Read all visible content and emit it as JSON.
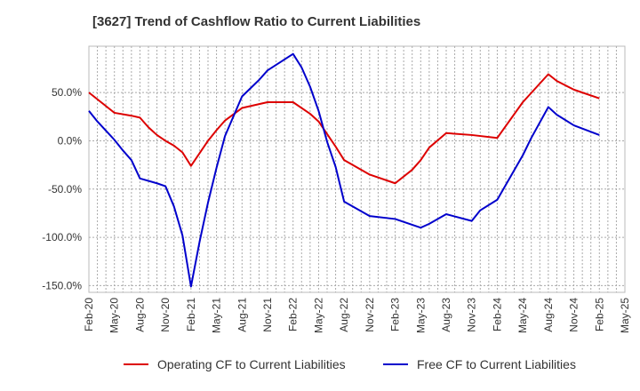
{
  "chart_data": {
    "type": "line",
    "title": "[3627]  Trend of Cashflow Ratio to Current Liabilities",
    "xlabel": "",
    "ylabel": "",
    "x_ticks": [
      "Feb-20",
      "May-20",
      "Aug-20",
      "Nov-20",
      "Feb-21",
      "May-21",
      "Aug-21",
      "Nov-21",
      "Feb-22",
      "May-22",
      "Aug-22",
      "Nov-22",
      "Feb-23",
      "May-23",
      "Aug-23",
      "Nov-23",
      "Feb-24",
      "May-24",
      "Aug-24",
      "Nov-24",
      "Feb-25",
      "May-25"
    ],
    "y_ticks": [
      "50.0%",
      "0.0%",
      "-50.0%",
      "-100.0%",
      "-150.0%"
    ],
    "y_tick_values": [
      50,
      0,
      -50,
      -100,
      -150
    ],
    "ylim": [
      -157,
      98
    ],
    "x_range_months": [
      0,
      63
    ],
    "grid": true,
    "legend_position": "bottom",
    "series": [
      {
        "name": "Operating CF to Current Liabilities",
        "color": "#dd0000",
        "points": [
          {
            "x": "2020-02",
            "y": 50
          },
          {
            "x": "2020-05",
            "y": 29
          },
          {
            "x": "2020-07",
            "y": 26
          },
          {
            "x": "2020-08",
            "y": 24
          },
          {
            "x": "2020-09",
            "y": 14
          },
          {
            "x": "2020-10",
            "y": 6
          },
          {
            "x": "2020-11",
            "y": 0
          },
          {
            "x": "2020-12",
            "y": -5
          },
          {
            "x": "2021-01",
            "y": -12
          },
          {
            "x": "2021-02",
            "y": -26
          },
          {
            "x": "2021-04",
            "y": 0
          },
          {
            "x": "2021-05",
            "y": 11
          },
          {
            "x": "2021-06",
            "y": 21
          },
          {
            "x": "2021-08",
            "y": 34
          },
          {
            "x": "2021-11",
            "y": 40
          },
          {
            "x": "2022-02",
            "y": 40
          },
          {
            "x": "2022-04",
            "y": 28
          },
          {
            "x": "2022-05",
            "y": 20
          },
          {
            "x": "2022-06",
            "y": 7
          },
          {
            "x": "2022-07",
            "y": -6
          },
          {
            "x": "2022-08",
            "y": -20
          },
          {
            "x": "2022-11",
            "y": -35
          },
          {
            "x": "2023-02",
            "y": -44
          },
          {
            "x": "2023-04",
            "y": -30
          },
          {
            "x": "2023-05",
            "y": -20
          },
          {
            "x": "2023-06",
            "y": -7
          },
          {
            "x": "2023-08",
            "y": 8
          },
          {
            "x": "2023-11",
            "y": 6
          },
          {
            "x": "2024-02",
            "y": 3
          },
          {
            "x": "2024-05",
            "y": 40
          },
          {
            "x": "2024-08",
            "y": 69
          },
          {
            "x": "2024-09",
            "y": 62
          },
          {
            "x": "2024-11",
            "y": 53
          },
          {
            "x": "2025-02",
            "y": 44
          }
        ]
      },
      {
        "name": "Free CF to Current Liabilities",
        "color": "#0000cc",
        "points": [
          {
            "x": "2020-02",
            "y": 31
          },
          {
            "x": "2020-03",
            "y": 20
          },
          {
            "x": "2020-05",
            "y": 1
          },
          {
            "x": "2020-06",
            "y": -10
          },
          {
            "x": "2020-07",
            "y": -20
          },
          {
            "x": "2020-08",
            "y": -39
          },
          {
            "x": "2020-10",
            "y": -44
          },
          {
            "x": "2020-11",
            "y": -47
          },
          {
            "x": "2020-12",
            "y": -68
          },
          {
            "x": "2021-01",
            "y": -98
          },
          {
            "x": "2021-02",
            "y": -151
          },
          {
            "x": "2021-03",
            "y": -105
          },
          {
            "x": "2021-04",
            "y": -64
          },
          {
            "x": "2021-05",
            "y": -28
          },
          {
            "x": "2021-06",
            "y": 5
          },
          {
            "x": "2021-08",
            "y": 46
          },
          {
            "x": "2021-10",
            "y": 63
          },
          {
            "x": "2021-11",
            "y": 73
          },
          {
            "x": "2022-02",
            "y": 90
          },
          {
            "x": "2022-03",
            "y": 76
          },
          {
            "x": "2022-04",
            "y": 56
          },
          {
            "x": "2022-05",
            "y": 31
          },
          {
            "x": "2022-06",
            "y": -1
          },
          {
            "x": "2022-07",
            "y": -27
          },
          {
            "x": "2022-08",
            "y": -63
          },
          {
            "x": "2022-11",
            "y": -78
          },
          {
            "x": "2023-02",
            "y": -81
          },
          {
            "x": "2023-05",
            "y": -90
          },
          {
            "x": "2023-06",
            "y": -86
          },
          {
            "x": "2023-08",
            "y": -76
          },
          {
            "x": "2023-11",
            "y": -83
          },
          {
            "x": "2023-12",
            "y": -72
          },
          {
            "x": "2024-02",
            "y": -61
          },
          {
            "x": "2024-05",
            "y": -15
          },
          {
            "x": "2024-06",
            "y": 3
          },
          {
            "x": "2024-08",
            "y": 35
          },
          {
            "x": "2024-09",
            "y": 27
          },
          {
            "x": "2024-11",
            "y": 16
          },
          {
            "x": "2025-02",
            "y": 6
          }
        ]
      }
    ]
  }
}
